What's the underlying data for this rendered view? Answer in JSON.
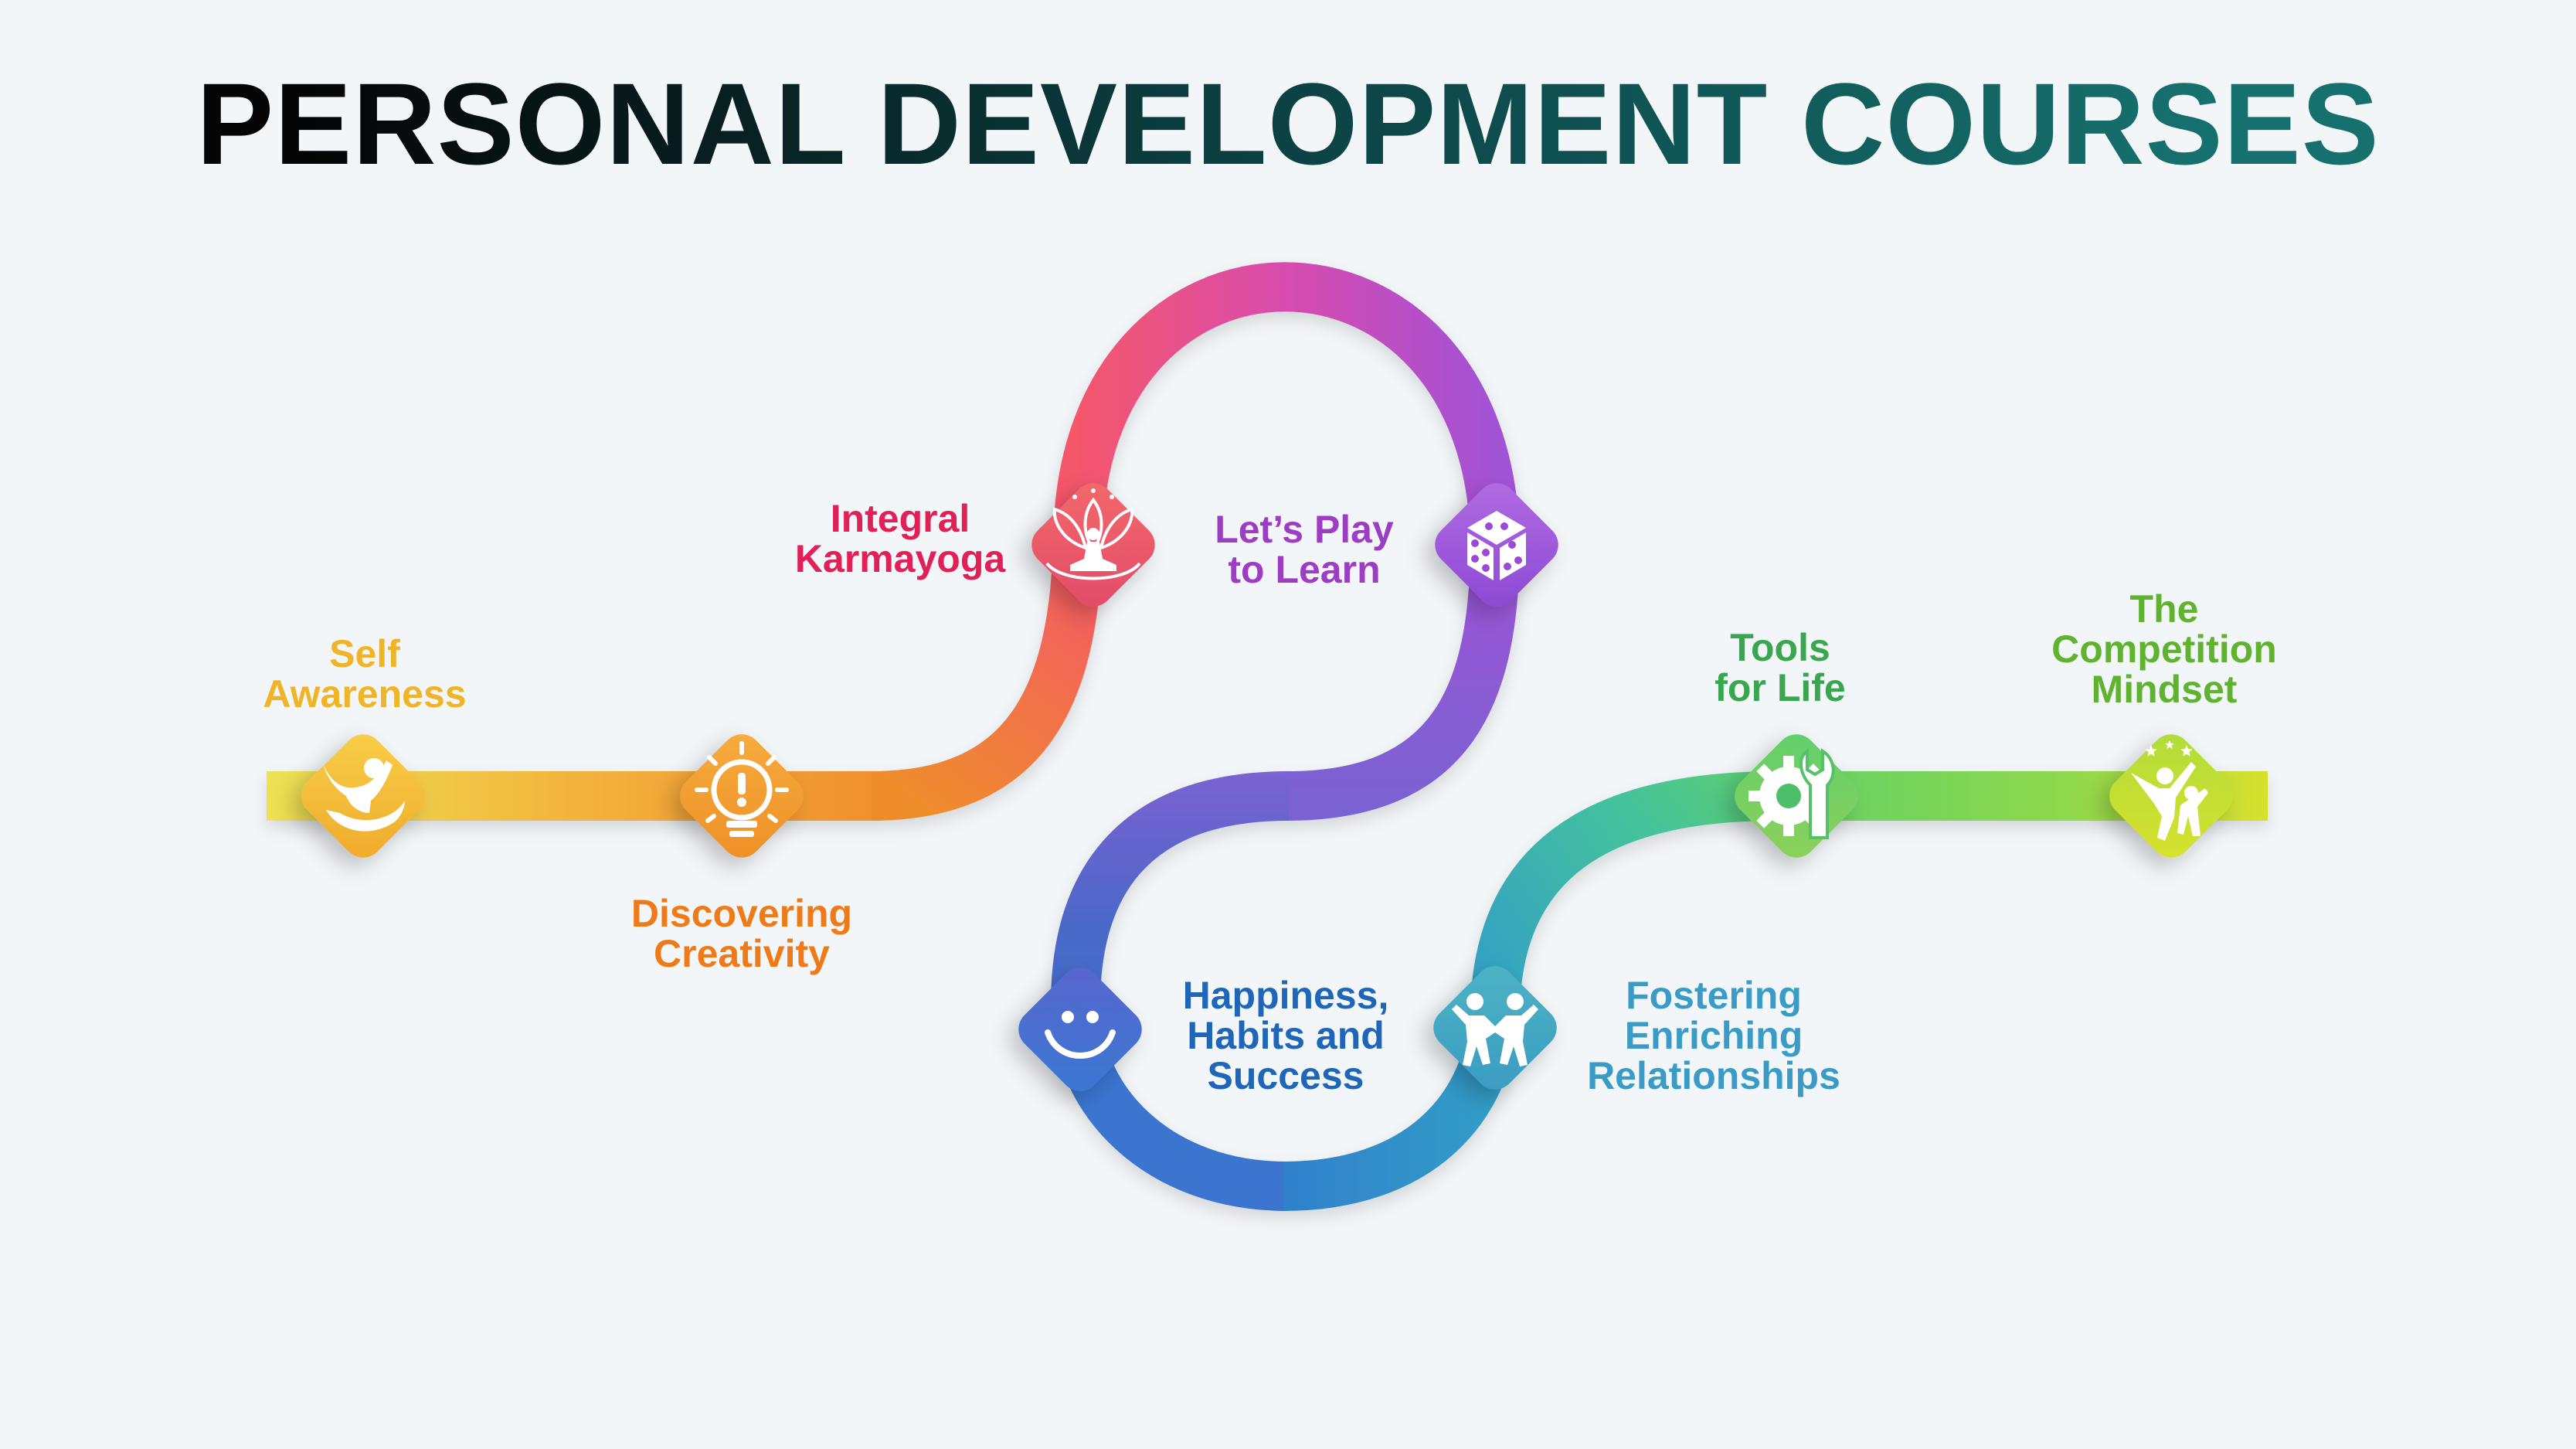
{
  "title": "PERSONAL DEVELOPMENT COURSES",
  "courses": [
    {
      "label_lines": [
        "Self",
        "Awareness"
      ],
      "color": "#f0b428",
      "icon": "person-cheering-icon"
    },
    {
      "label_lines": [
        "Discovering",
        "Creativity"
      ],
      "color": "#ee7a18",
      "icon": "lightbulb-icon"
    },
    {
      "label_lines": [
        "Integral",
        "Karmayoga"
      ],
      "color": "#e22058",
      "icon": "meditation-lotus-icon"
    },
    {
      "label_lines": [
        "Let’s Play",
        "to Learn"
      ],
      "color": "#9c3dc4",
      "icon": "dice-icon"
    },
    {
      "label_lines": [
        "Happiness,",
        "Habits and",
        "Success"
      ],
      "color": "#1f66b8",
      "icon": "smiley-icon"
    },
    {
      "label_lines": [
        "Fostering",
        "Enriching",
        "Relationships"
      ],
      "color": "#3a9cc6",
      "icon": "two-people-icon"
    },
    {
      "label_lines": [
        "Tools",
        "for Life"
      ],
      "color": "#3aa650",
      "icon": "gear-wrench-icon"
    },
    {
      "label_lines": [
        "The",
        "Competition",
        "Mindset"
      ],
      "color": "#5fb32f",
      "icon": "star-people-icon"
    }
  ],
  "colors": {
    "background": "#f3f6f9",
    "path_start": "#ece254",
    "path_orange": "#f2a93a",
    "path_red": "#f45d5d",
    "path_pink": "#d94ca0",
    "path_purple": "#8a5ee0",
    "path_blue": "#2f7fd0",
    "path_teal": "#3fb4b0",
    "path_green": "#6fd65e",
    "path_end": "#d8e22c"
  }
}
